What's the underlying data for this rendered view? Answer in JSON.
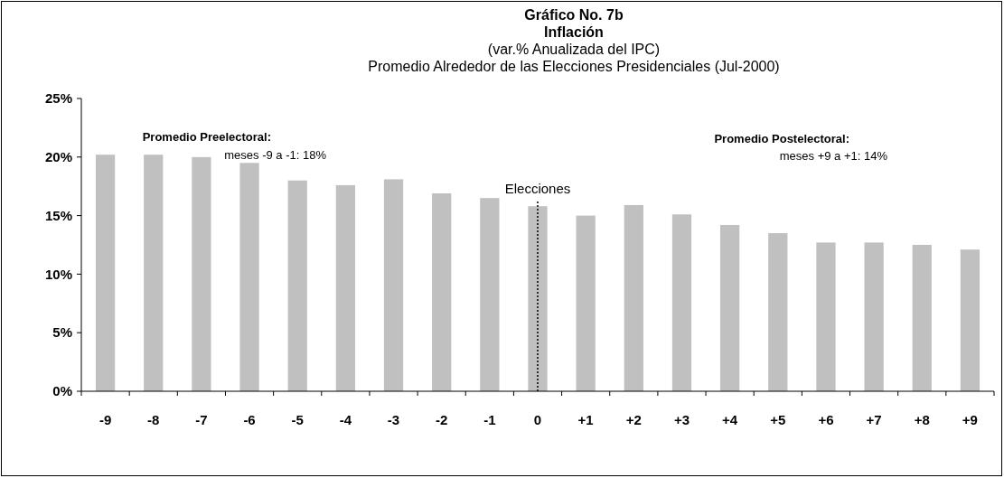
{
  "chart_data": {
    "type": "bar",
    "title": "Gráfico No. 7b\nInflación",
    "subtitle": "(var.% Anualizada del IPC)\nPromedio Alrededor de las Elecciones Presidenciales (Jul-2000)",
    "categories": [
      "-9",
      "-8",
      "-7",
      "-6",
      "-5",
      "-4",
      "-3",
      "-2",
      "-1",
      "0",
      "+1",
      "+2",
      "+3",
      "+4",
      "+5",
      "+6",
      "+7",
      "+8",
      "+9"
    ],
    "values": [
      20.2,
      20.2,
      20.0,
      19.5,
      18.0,
      17.6,
      18.1,
      16.9,
      16.5,
      15.8,
      15.0,
      15.9,
      15.1,
      14.2,
      13.5,
      12.7,
      12.7,
      12.5,
      12.1
    ],
    "color": "#c0c0c0",
    "ylim": [
      0,
      25
    ],
    "yticks": [
      {
        "value": 0,
        "label": "0%"
      },
      {
        "value": 5,
        "label": "5%"
      },
      {
        "value": 10,
        "label": "10%"
      },
      {
        "value": 15,
        "label": "15%"
      },
      {
        "value": 20,
        "label": "20%"
      },
      {
        "value": 25,
        "label": "25%"
      }
    ],
    "ref_lines": [
      {
        "axis": "x",
        "value": "0",
        "label": "Elecciones",
        "line_style": "dotted",
        "color": "#000000"
      }
    ],
    "annotations": [
      "Promedio Preelectoral:",
      "meses -9 a -1: 18%",
      "Promedio Postelectoral:",
      "meses +9 a +1: 14%"
    ],
    "grid": false
  }
}
